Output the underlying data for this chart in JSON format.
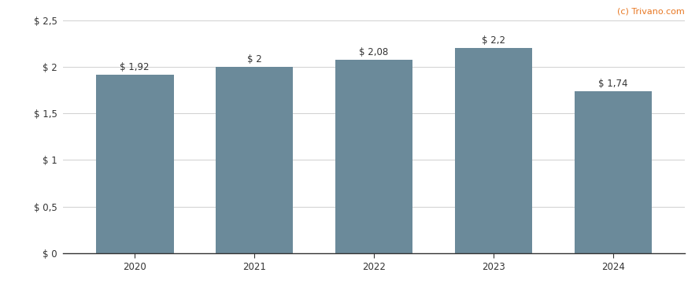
{
  "categories": [
    "2020",
    "2021",
    "2022",
    "2023",
    "2024"
  ],
  "values": [
    1.92,
    2.0,
    2.08,
    2.2,
    1.74
  ],
  "bar_labels": [
    "$ 1,92",
    "$ 2",
    "$ 2,08",
    "$ 2,2",
    "$ 1,74"
  ],
  "bar_color": "#6b8a9a",
  "background_color": "#ffffff",
  "ylim": [
    0,
    2.5
  ],
  "yticks": [
    0,
    0.5,
    1.0,
    1.5,
    2.0,
    2.5
  ],
  "ytick_labels": [
    "$ 0",
    "$ 0,5",
    "$ 1",
    "$ 1,5",
    "$ 2",
    "$ 2,5"
  ],
  "watermark": "(c) Trivano.com",
  "watermark_color": "#e87722",
  "grid_color": "#d0d0d0",
  "bar_width": 0.65,
  "label_fontsize": 8.5,
  "tick_fontsize": 8.5
}
